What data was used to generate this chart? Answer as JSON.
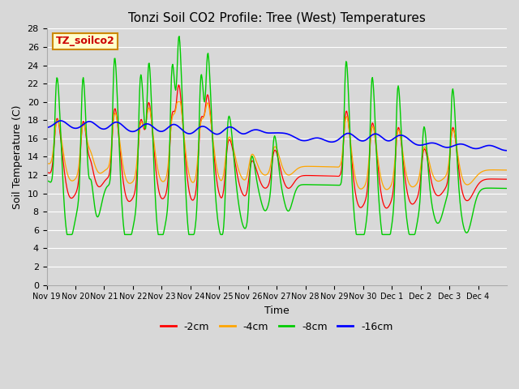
{
  "title": "Tonzi Soil CO2 Profile: Tree (West) Temperatures",
  "xlabel": "Time",
  "ylabel": "Soil Temperature (C)",
  "ylim": [
    0,
    28
  ],
  "yticks": [
    0,
    2,
    4,
    6,
    8,
    10,
    12,
    14,
    16,
    18,
    20,
    22,
    24,
    26,
    28
  ],
  "legend_label": "TZ_soilco2",
  "series_labels": [
    "-2cm",
    "-4cm",
    "-8cm",
    "-16cm"
  ],
  "series_colors": [
    "#ff0000",
    "#ffa500",
    "#00cc00",
    "#0000ff"
  ],
  "background_color": "#d8d8d8",
  "plot_bg_color": "#d8d8d8",
  "grid_color": "#ffffff",
  "xtick_labels": [
    "Nov 19",
    "Nov 20",
    "Nov 21",
    "Nov 22",
    "Nov 23",
    "Nov 24",
    "Nov 25",
    "Nov 26",
    "Nov 27",
    "Nov 28",
    "Nov 29",
    "Nov 30",
    "Dec 1",
    "Dec 2",
    "Dec 3",
    "Dec 4"
  ],
  "days": 16
}
